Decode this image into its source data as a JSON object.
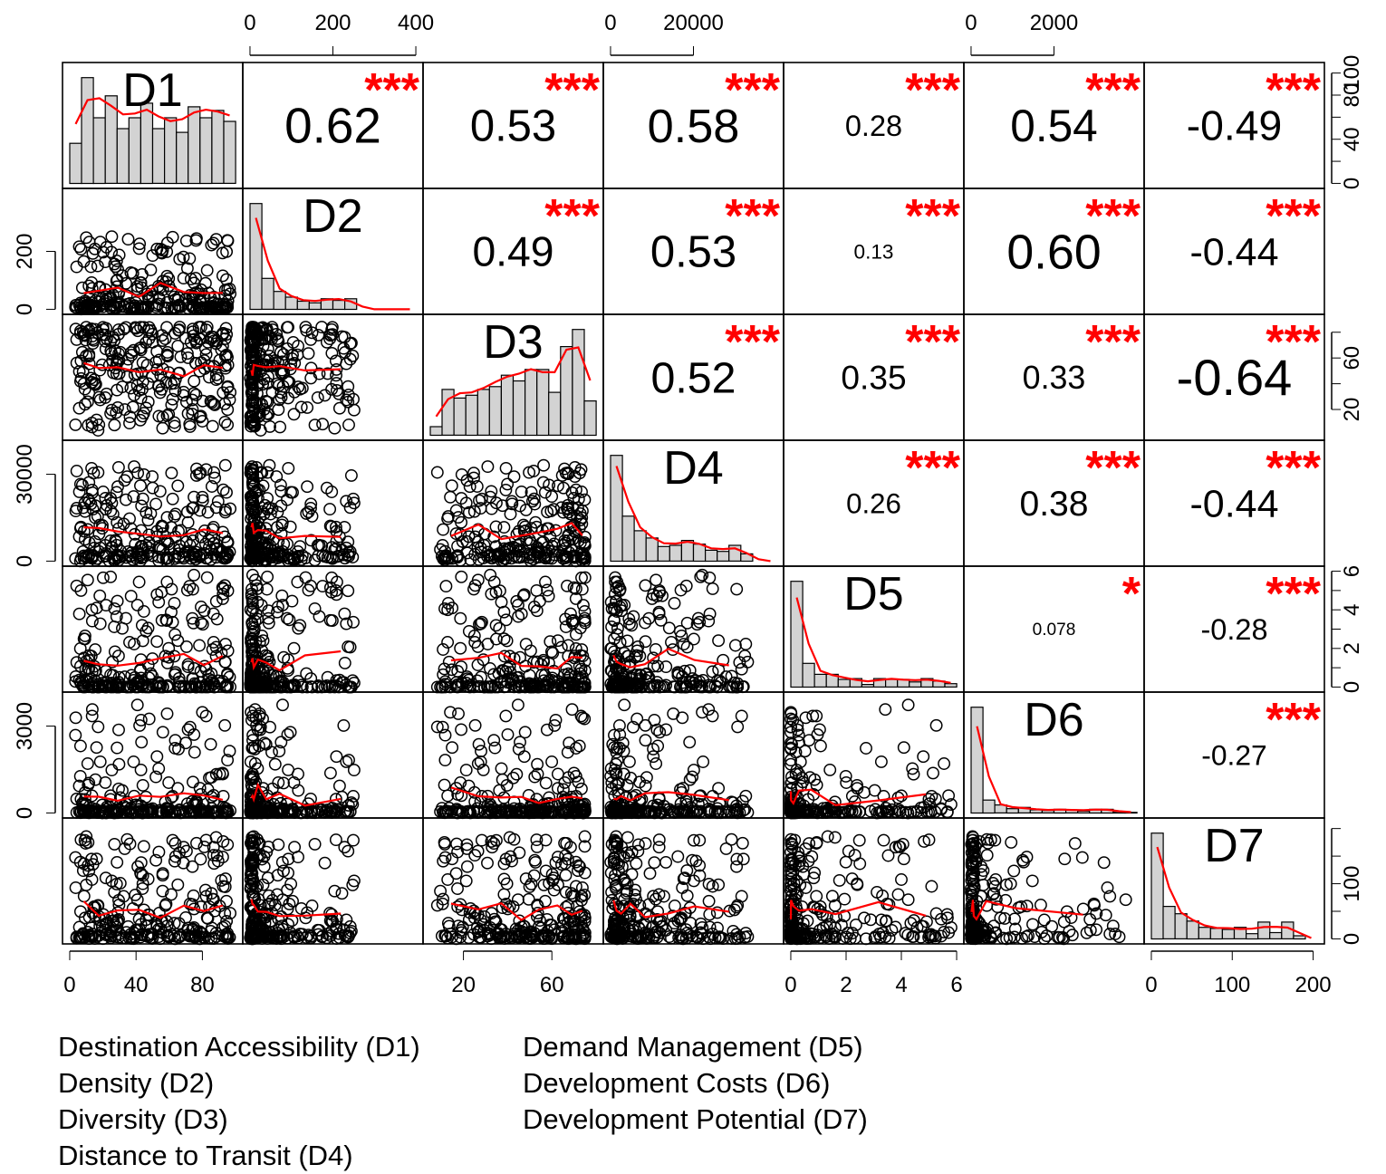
{
  "chart_data": {
    "type": "scatterplot-matrix",
    "variables": [
      "D1",
      "D2",
      "D3",
      "D4",
      "D5",
      "D6",
      "D7"
    ],
    "variable_ranges": {
      "D1": [
        0,
        100
      ],
      "D2": [
        0,
        400
      ],
      "D3": [
        5,
        80
      ],
      "D4": [
        0,
        40000
      ],
      "D5": [
        0,
        6
      ],
      "D6": [
        0,
        4000
      ],
      "D7": [
        0,
        205
      ]
    },
    "histogram_count_ranges": {
      "D1": [
        0,
        105
      ],
      "D3": [
        0,
        90
      ],
      "D5": [
        0,
        6
      ],
      "D7": [
        0,
        210
      ]
    },
    "correlations": [
      {
        "row": "D1",
        "col": "D2",
        "r": "0.62",
        "stars": "***"
      },
      {
        "row": "D1",
        "col": "D3",
        "r": "0.53",
        "stars": "***"
      },
      {
        "row": "D1",
        "col": "D4",
        "r": "0.58",
        "stars": "***"
      },
      {
        "row": "D1",
        "col": "D5",
        "r": "0.28",
        "stars": "***"
      },
      {
        "row": "D1",
        "col": "D6",
        "r": "0.54",
        "stars": "***"
      },
      {
        "row": "D1",
        "col": "D7",
        "r": "-0.49",
        "stars": "***"
      },
      {
        "row": "D2",
        "col": "D3",
        "r": "0.49",
        "stars": "***"
      },
      {
        "row": "D2",
        "col": "D4",
        "r": "0.53",
        "stars": "***"
      },
      {
        "row": "D2",
        "col": "D5",
        "r": "0.13",
        "stars": "***"
      },
      {
        "row": "D2",
        "col": "D6",
        "r": "0.60",
        "stars": "***"
      },
      {
        "row": "D2",
        "col": "D7",
        "r": "-0.44",
        "stars": "***"
      },
      {
        "row": "D3",
        "col": "D4",
        "r": "0.52",
        "stars": "***"
      },
      {
        "row": "D3",
        "col": "D5",
        "r": "0.35",
        "stars": "***"
      },
      {
        "row": "D3",
        "col": "D6",
        "r": "0.33",
        "stars": "***"
      },
      {
        "row": "D3",
        "col": "D7",
        "r": "-0.64",
        "stars": "***"
      },
      {
        "row": "D4",
        "col": "D5",
        "r": "0.26",
        "stars": "***"
      },
      {
        "row": "D4",
        "col": "D6",
        "r": "0.38",
        "stars": "***"
      },
      {
        "row": "D4",
        "col": "D7",
        "r": "-0.44",
        "stars": "***"
      },
      {
        "row": "D5",
        "col": "D6",
        "r": "0.078",
        "stars": "*"
      },
      {
        "row": "D5",
        "col": "D7",
        "r": "-0.28",
        "stars": "***"
      },
      {
        "row": "D6",
        "col": "D7",
        "r": "-0.27",
        "stars": "***"
      }
    ],
    "axes": {
      "bottom": [
        {
          "col": 0,
          "ticks": [
            0,
            40,
            80
          ],
          "labels": [
            "0",
            "40",
            "80"
          ]
        },
        {
          "col": 2,
          "ticks": [
            20,
            60
          ],
          "labels": [
            "20",
            "60"
          ]
        },
        {
          "col": 4,
          "ticks": [
            0,
            2,
            4,
            6
          ],
          "labels": [
            "0",
            "2",
            "4",
            "6"
          ]
        },
        {
          "col": 6,
          "ticks": [
            0,
            100,
            200
          ],
          "labels": [
            "0",
            "100",
            "200"
          ]
        }
      ],
      "top": [
        {
          "col": 1,
          "ticks": [
            0,
            200,
            400
          ],
          "labels": [
            "0",
            "200",
            "400"
          ]
        },
        {
          "col": 3,
          "ticks": [
            0,
            20000
          ],
          "labels": [
            "0",
            "20000"
          ]
        },
        {
          "col": 5,
          "ticks": [
            0,
            2000
          ],
          "labels": [
            "0",
            "2000"
          ]
        }
      ],
      "left": [
        {
          "row": 1,
          "ticks": [
            0,
            200
          ],
          "labels": [
            "0",
            "200"
          ]
        },
        {
          "row": 3,
          "ticks": [
            0,
            30000
          ],
          "labels": [
            "0",
            "30000"
          ]
        },
        {
          "row": 5,
          "ticks": [
            0,
            3000
          ],
          "labels": [
            "0",
            "3000"
          ]
        }
      ],
      "right": [
        {
          "row": 0,
          "ticks": [
            0,
            20,
            40,
            60,
            80,
            100
          ],
          "labels": [
            "0",
            "",
            "40",
            "",
            "80",
            "100"
          ]
        },
        {
          "row": 2,
          "ticks": [
            20,
            40,
            60,
            80
          ],
          "labels": [
            "20",
            "",
            "60",
            ""
          ]
        },
        {
          "row": 4,
          "ticks": [
            0,
            1,
            2,
            3,
            4,
            5,
            6
          ],
          "labels": [
            "0",
            "",
            "2",
            "",
            "4",
            "",
            "6"
          ]
        },
        {
          "row": 6,
          "ticks": [
            0,
            50,
            100,
            150,
            200
          ],
          "labels": [
            "0",
            "",
            "100",
            "",
            ""
          ]
        }
      ]
    },
    "colors": {
      "fit_line": "#ff0000",
      "stars": "#ff0000",
      "bars": "#d3d3d3",
      "points": "#000000"
    }
  },
  "legend": {
    "left": [
      "Destination Accessibility (D1)",
      "Density (D2)",
      "Diversity (D3)",
      "Distance to Transit (D4)"
    ],
    "right": [
      "Demand Management (D5)",
      "Development Costs (D6)",
      "Development Potential (D7)"
    ]
  }
}
